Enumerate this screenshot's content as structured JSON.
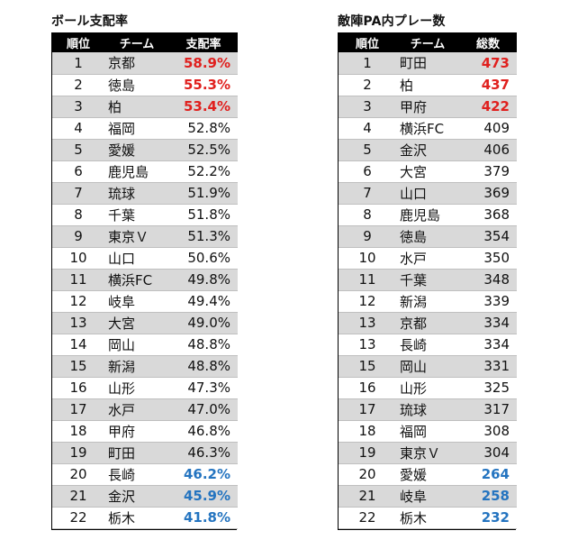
{
  "colors": {
    "top": "#e0201e",
    "bottom": "#2474c0",
    "header_bg": "#000000",
    "stripe": "#d9d9d9"
  },
  "possession": {
    "title": "ボール支配率",
    "headers": {
      "rank": "順位",
      "team": "チーム",
      "value": "支配率"
    },
    "rows": [
      {
        "rank": "1",
        "team": "京都",
        "value": "58.9%",
        "highlight": "top"
      },
      {
        "rank": "2",
        "team": "徳島",
        "value": "55.3%",
        "highlight": "top"
      },
      {
        "rank": "3",
        "team": "柏",
        "value": "53.4%",
        "highlight": "top"
      },
      {
        "rank": "4",
        "team": "福岡",
        "value": "52.8%",
        "highlight": ""
      },
      {
        "rank": "5",
        "team": "愛媛",
        "value": "52.5%",
        "highlight": ""
      },
      {
        "rank": "6",
        "team": "鹿児島",
        "value": "52.2%",
        "highlight": ""
      },
      {
        "rank": "7",
        "team": "琉球",
        "value": "51.9%",
        "highlight": ""
      },
      {
        "rank": "8",
        "team": "千葉",
        "value": "51.8%",
        "highlight": ""
      },
      {
        "rank": "9",
        "team": "東京Ｖ",
        "value": "51.3%",
        "highlight": ""
      },
      {
        "rank": "10",
        "team": "山口",
        "value": "50.6%",
        "highlight": ""
      },
      {
        "rank": "11",
        "team": "横浜FC",
        "value": "49.8%",
        "highlight": ""
      },
      {
        "rank": "12",
        "team": "岐阜",
        "value": "49.4%",
        "highlight": ""
      },
      {
        "rank": "13",
        "team": "大宮",
        "value": "49.0%",
        "highlight": ""
      },
      {
        "rank": "14",
        "team": "岡山",
        "value": "48.8%",
        "highlight": ""
      },
      {
        "rank": "15",
        "team": "新潟",
        "value": "48.8%",
        "highlight": ""
      },
      {
        "rank": "16",
        "team": "山形",
        "value": "47.3%",
        "highlight": ""
      },
      {
        "rank": "17",
        "team": "水戸",
        "value": "47.0%",
        "highlight": ""
      },
      {
        "rank": "18",
        "team": "甲府",
        "value": "46.8%",
        "highlight": ""
      },
      {
        "rank": "19",
        "team": "町田",
        "value": "46.3%",
        "highlight": ""
      },
      {
        "rank": "20",
        "team": "長崎",
        "value": "46.2%",
        "highlight": "bottom"
      },
      {
        "rank": "21",
        "team": "金沢",
        "value": "45.9%",
        "highlight": "bottom"
      },
      {
        "rank": "22",
        "team": "栃木",
        "value": "41.8%",
        "highlight": "bottom"
      }
    ]
  },
  "pa_plays": {
    "title": "敵陣PA内プレー数",
    "headers": {
      "rank": "順位",
      "team": "チーム",
      "value": "総数"
    },
    "rows": [
      {
        "rank": "1",
        "team": "町田",
        "value": "473",
        "highlight": "top"
      },
      {
        "rank": "2",
        "team": "柏",
        "value": "437",
        "highlight": "top"
      },
      {
        "rank": "3",
        "team": "甲府",
        "value": "422",
        "highlight": "top"
      },
      {
        "rank": "4",
        "team": "横浜FC",
        "value": "409",
        "highlight": ""
      },
      {
        "rank": "5",
        "team": "金沢",
        "value": "406",
        "highlight": ""
      },
      {
        "rank": "6",
        "team": "大宮",
        "value": "379",
        "highlight": ""
      },
      {
        "rank": "7",
        "team": "山口",
        "value": "369",
        "highlight": ""
      },
      {
        "rank": "8",
        "team": "鹿児島",
        "value": "368",
        "highlight": ""
      },
      {
        "rank": "9",
        "team": "徳島",
        "value": "354",
        "highlight": ""
      },
      {
        "rank": "10",
        "team": "水戸",
        "value": "350",
        "highlight": ""
      },
      {
        "rank": "11",
        "team": "千葉",
        "value": "348",
        "highlight": ""
      },
      {
        "rank": "12",
        "team": "新潟",
        "value": "339",
        "highlight": ""
      },
      {
        "rank": "13",
        "team": "京都",
        "value": "334",
        "highlight": ""
      },
      {
        "rank": "13",
        "team": "長崎",
        "value": "334",
        "highlight": ""
      },
      {
        "rank": "15",
        "team": "岡山",
        "value": "331",
        "highlight": ""
      },
      {
        "rank": "16",
        "team": "山形",
        "value": "325",
        "highlight": ""
      },
      {
        "rank": "17",
        "team": "琉球",
        "value": "317",
        "highlight": ""
      },
      {
        "rank": "18",
        "team": "福岡",
        "value": "308",
        "highlight": ""
      },
      {
        "rank": "19",
        "team": "東京Ｖ",
        "value": "304",
        "highlight": ""
      },
      {
        "rank": "20",
        "team": "愛媛",
        "value": "264",
        "highlight": "bottom"
      },
      {
        "rank": "21",
        "team": "岐阜",
        "value": "258",
        "highlight": "bottom"
      },
      {
        "rank": "22",
        "team": "栃木",
        "value": "232",
        "highlight": "bottom"
      }
    ]
  }
}
